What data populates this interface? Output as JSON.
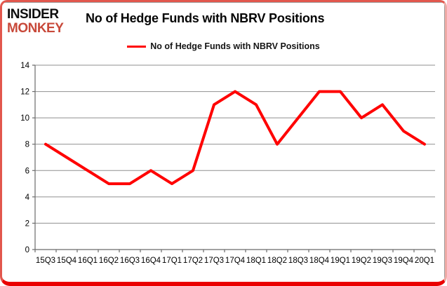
{
  "logo": {
    "line1": "INSIDER",
    "line2": "MONKEY"
  },
  "title": "No of Hedge Funds with NBRV Positions",
  "legend": {
    "label": "No of Hedge Funds with NBRV Positions"
  },
  "colors": {
    "line": "#ff0000",
    "logo_black": "#0d0d0d",
    "logo_red": "#c8493a",
    "frame_top": "#e2574d",
    "frame_bottom": "#ea0000",
    "grid": "#8f8f8f",
    "axis": "#6b6b6b",
    "label_text": "#000000"
  },
  "chart_data": {
    "type": "line",
    "categories": [
      "15Q3",
      "15Q4",
      "16Q1",
      "16Q2",
      "16Q3",
      "16Q4",
      "17Q1",
      "17Q2",
      "17Q3",
      "17Q4",
      "18Q1",
      "18Q2",
      "18Q3",
      "18Q4",
      "19Q1",
      "19Q2",
      "19Q3",
      "19Q4",
      "20Q1"
    ],
    "values": [
      8,
      7,
      6,
      5,
      5,
      6,
      5,
      6,
      11,
      12,
      11,
      8,
      10,
      12,
      12,
      10,
      11,
      9,
      8
    ],
    "title": "No of Hedge Funds with NBRV Positions",
    "xlabel": "",
    "ylabel": "",
    "ylim": [
      0,
      14
    ],
    "ytick_step": 2,
    "grid": true,
    "legend_position": "top-center",
    "line_width": 4
  }
}
